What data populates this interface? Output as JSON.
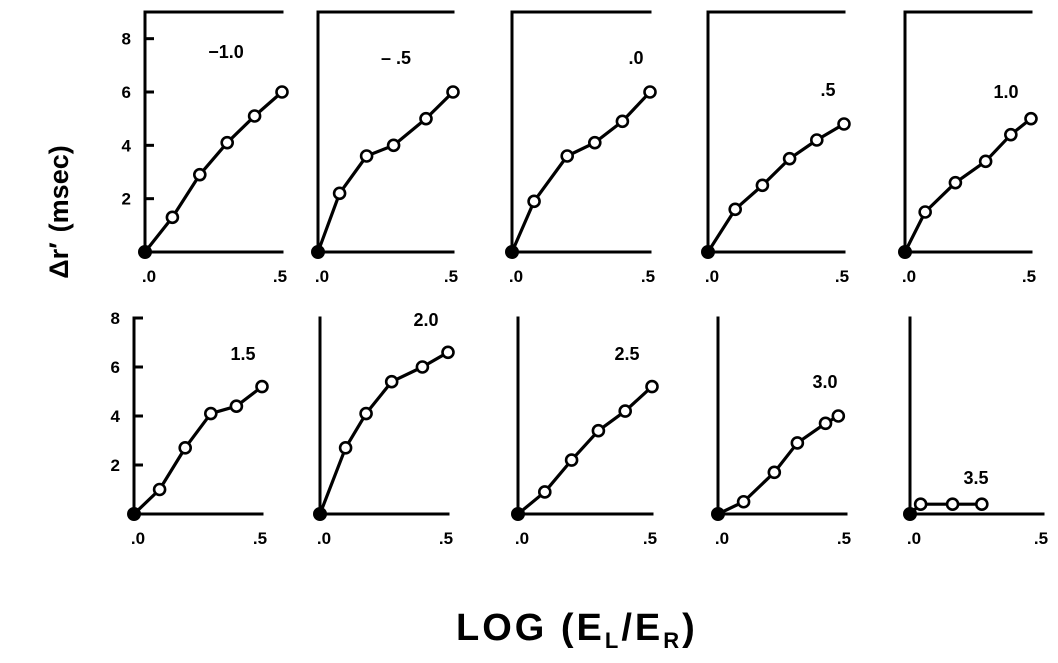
{
  "figure": {
    "ylabel_main": "Δr",
    "ylabel_prime": "′",
    "ylabel_unit": "(msec)",
    "xlabel_main": "LOG (E",
    "xlabel_sub1": "L",
    "xlabel_sep": "/E",
    "xlabel_sub2": "R",
    "xlabel_end": ")"
  },
  "chart_data": [
    {
      "type": "line",
      "label": "−1.0",
      "x": [
        0,
        0.1,
        0.2,
        0.3,
        0.4,
        0.5
      ],
      "y": [
        0,
        1.3,
        2.9,
        4.1,
        5.1,
        6.0
      ],
      "xlim": [
        0,
        0.5
      ],
      "ylim": [
        0,
        9
      ],
      "xticks": [
        ".0",
        ".5"
      ],
      "yticks": [
        "2",
        "4",
        "6",
        "8"
      ]
    },
    {
      "type": "line",
      "label": "– .5",
      "x": [
        0,
        0.08,
        0.18,
        0.28,
        0.4,
        0.5
      ],
      "y": [
        0,
        2.2,
        3.6,
        4.0,
        5.0,
        6.0
      ],
      "xlim": [
        0,
        0.5
      ],
      "ylim": [
        0,
        9
      ],
      "xticks": [
        ".0",
        ".5"
      ]
    },
    {
      "type": "line",
      "label": ".0",
      "x": [
        0,
        0.08,
        0.2,
        0.3,
        0.4,
        0.5
      ],
      "y": [
        0,
        1.9,
        3.6,
        4.1,
        4.9,
        6.0
      ],
      "xlim": [
        0,
        0.5
      ],
      "ylim": [
        0,
        9
      ],
      "xticks": [
        ".0",
        ".5"
      ]
    },
    {
      "type": "line",
      "label": ".5",
      "x": [
        0,
        0.1,
        0.2,
        0.3,
        0.4,
        0.5
      ],
      "y": [
        0,
        1.6,
        2.5,
        3.5,
        4.2,
        4.8
      ],
      "xlim": [
        0,
        0.5
      ],
      "ylim": [
        0,
        9
      ],
      "xticks": [
        ".0",
        ".5"
      ]
    },
    {
      "type": "line",
      "label": "1.0",
      "x": [
        0,
        0.08,
        0.2,
        0.32,
        0.42,
        0.5
      ],
      "y": [
        0,
        1.5,
        2.6,
        3.4,
        4.4,
        5.0
      ],
      "xlim": [
        0,
        0.5
      ],
      "ylim": [
        0,
        9
      ],
      "xticks": [
        ".0",
        ".5"
      ]
    },
    {
      "type": "line",
      "label": "1.5",
      "x": [
        0,
        0.1,
        0.2,
        0.3,
        0.4,
        0.5
      ],
      "y": [
        0,
        1.0,
        2.7,
        4.1,
        4.4,
        5.2
      ],
      "xlim": [
        0,
        0.5
      ],
      "ylim": [
        0,
        8
      ],
      "xticks": [
        ".0",
        ".5"
      ],
      "yticks": [
        "2",
        "4",
        "6",
        "8"
      ]
    },
    {
      "type": "line",
      "label": "2.0",
      "x": [
        0,
        0.1,
        0.18,
        0.28,
        0.4,
        0.5
      ],
      "y": [
        0,
        2.7,
        4.1,
        5.4,
        6.0,
        6.6
      ],
      "xlim": [
        0,
        0.5
      ],
      "ylim": [
        0,
        8
      ],
      "xticks": [
        ".0",
        ".5"
      ]
    },
    {
      "type": "line",
      "label": "2.5",
      "x": [
        0,
        0.1,
        0.2,
        0.3,
        0.4,
        0.5
      ],
      "y": [
        0,
        0.9,
        2.2,
        3.4,
        4.2,
        5.2
      ],
      "xlim": [
        0,
        0.5
      ],
      "ylim": [
        0,
        8
      ],
      "xticks": [
        ".0",
        ".5"
      ]
    },
    {
      "type": "line",
      "label": "3.0",
      "x": [
        0,
        0.1,
        0.22,
        0.31,
        0.42,
        0.47
      ],
      "y": [
        0,
        0.5,
        1.7,
        2.9,
        3.7,
        4.0
      ],
      "xlim": [
        0,
        0.5
      ],
      "ylim": [
        0,
        8
      ],
      "xticks": [
        ".0",
        ".5"
      ]
    },
    {
      "type": "line",
      "label": "3.5",
      "x": [
        0,
        0.04,
        0.16,
        0.27
      ],
      "y": [
        0,
        0.4,
        0.4,
        0.4
      ],
      "xlim": [
        0,
        0.5
      ],
      "ylim": [
        0,
        8
      ],
      "xticks": [
        ".0",
        ".5"
      ]
    }
  ]
}
